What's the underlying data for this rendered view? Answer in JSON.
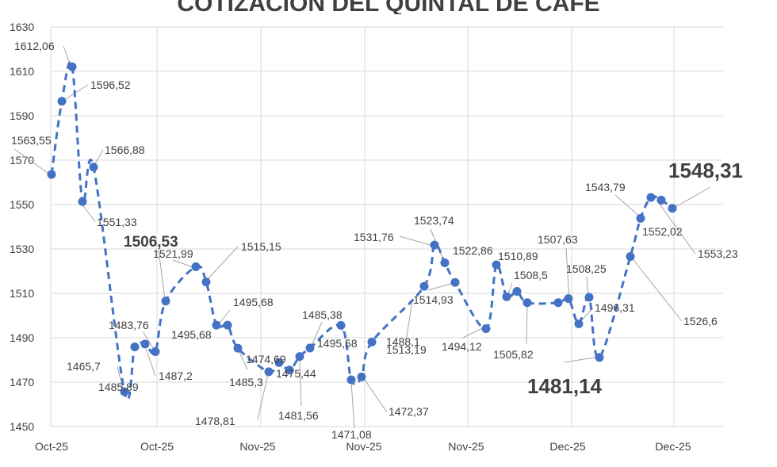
{
  "chart_data": {
    "type": "line",
    "title": "COTIZACIÓN DEL QUINTAL DE CAFÉ",
    "xlabel": "",
    "ylabel": "",
    "ylim": [
      1450,
      1630
    ],
    "y_ticks": [
      1450,
      1470,
      1490,
      1510,
      1530,
      1550,
      1570,
      1590,
      1610,
      1630
    ],
    "x_tick_labels": [
      "Oct-25",
      "Oct-25",
      "Nov-25",
      "Nov-25",
      "Nov-25",
      "Dec-25",
      "Dec-25"
    ],
    "grid": true,
    "legend": "none",
    "colors": {
      "line": "#4472C4",
      "marker": "#4472C4",
      "grid": "#d9d9d9",
      "leader": "#a6a6a6",
      "text": "#404040"
    },
    "series": [
      {
        "values": [
          1563.55,
          1596.52,
          1612.06,
          1551.33,
          1566.88,
          1465.7,
          1485.89,
          1487.2,
          1483.76,
          1506.53,
          1521.99,
          1515.15,
          1495.68,
          1495.68,
          1485.3,
          1474.69,
          1478.81,
          1475.44,
          1481.56,
          1485.38,
          1495.58,
          1471.08,
          1472.37,
          1488.1,
          1513.19,
          1531.76,
          1523.74,
          1514.93,
          1494.12,
          1522.86,
          1508.5,
          1510.89,
          1505.82,
          1505.82,
          1507.63,
          1496.31,
          1508.25,
          1481.14,
          1526.6,
          1543.79,
          1553.23,
          1552.02,
          1548.31
        ],
        "labels": [
          "1563,55",
          "1596,52",
          "1612,06",
          "1551,33",
          "1566,88",
          "1465,7",
          "1485,89",
          "1487,2",
          "1483,76",
          "1506,53",
          "1521,99",
          "1515,15",
          "1495,68",
          "1495,68",
          "1485,3",
          "1474,69",
          "1478,81",
          "1475,44",
          "1481,56",
          "1485,38",
          "1495,58",
          "1471,08",
          "1472,37",
          "1488,1",
          "1513,19",
          "1531,76",
          "1523,74",
          "1514,93",
          "1494,12",
          "1522,86",
          "1508,5",
          "1510,89",
          "1505,82",
          "",
          "1507,63",
          "1496,31",
          "1508,25",
          "1481,14",
          "1526,6",
          "1543,79",
          "1553,23",
          "1552,02",
          "1548,31"
        ]
      }
    ]
  }
}
